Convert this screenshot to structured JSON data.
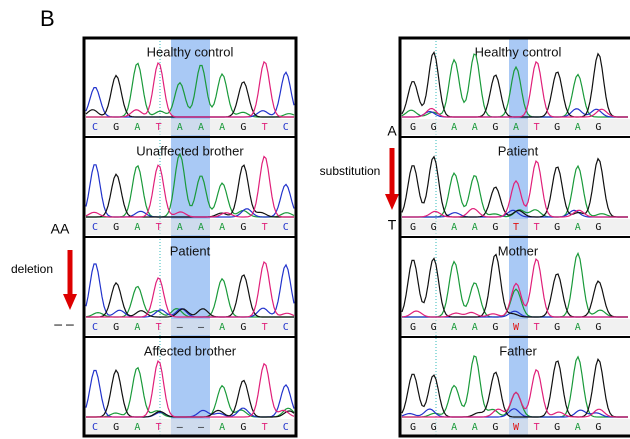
{
  "panel_label": "B",
  "left": {
    "side": {
      "top": "AA",
      "middle": "deletion",
      "bottom": "– –"
    },
    "rows": [
      {
        "title": "Healthy control",
        "bases": [
          "C",
          "G",
          "A",
          "T",
          "A",
          "A",
          "A",
          "G",
          "T",
          "C"
        ]
      },
      {
        "title": "Unaffected brother",
        "bases": [
          "C",
          "G",
          "A",
          "T",
          "A",
          "A",
          "A",
          "G",
          "T",
          "C"
        ]
      },
      {
        "title": "Patient",
        "bases": [
          "C",
          "G",
          "A",
          "T",
          "–",
          "–",
          "A",
          "G",
          "T",
          "C"
        ]
      },
      {
        "title": "Affected brother",
        "bases": [
          "C",
          "G",
          "A",
          "T",
          "–",
          "–",
          "A",
          "G",
          "T",
          "C"
        ]
      }
    ]
  },
  "right": {
    "side": {
      "top": "A",
      "middle": "substitution",
      "bottom": "T"
    },
    "rows": [
      {
        "title": "Healthy control",
        "bases": [
          "G",
          "G",
          "A",
          "A",
          "G",
          "A",
          "T",
          "G",
          "A",
          "G"
        ]
      },
      {
        "title": "Patient",
        "bases": [
          "G",
          "G",
          "A",
          "A",
          "G",
          "T",
          "T",
          "G",
          "A",
          "G"
        ]
      },
      {
        "title": "Mother",
        "bases": [
          "G",
          "G",
          "A",
          "A",
          "G",
          "W",
          "T",
          "G",
          "A",
          "G"
        ]
      },
      {
        "title": "Father",
        "bases": [
          "G",
          "G",
          "A",
          "A",
          "G",
          "W",
          "T",
          "G",
          "A",
          "G"
        ]
      }
    ]
  }
}
